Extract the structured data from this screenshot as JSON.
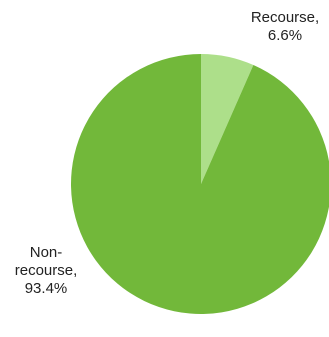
{
  "chart_data": {
    "type": "pie",
    "title": "",
    "start_angle_deg": 0,
    "direction": "clockwise",
    "slices": [
      {
        "label_lines": [
          "Recourse,",
          "6.6%"
        ],
        "value": 6.6,
        "color": "#addf8a"
      },
      {
        "label_lines": [
          "Non-",
          "recourse,",
          "93.4%"
        ],
        "value": 93.4,
        "color": "#72b83a"
      }
    ]
  }
}
